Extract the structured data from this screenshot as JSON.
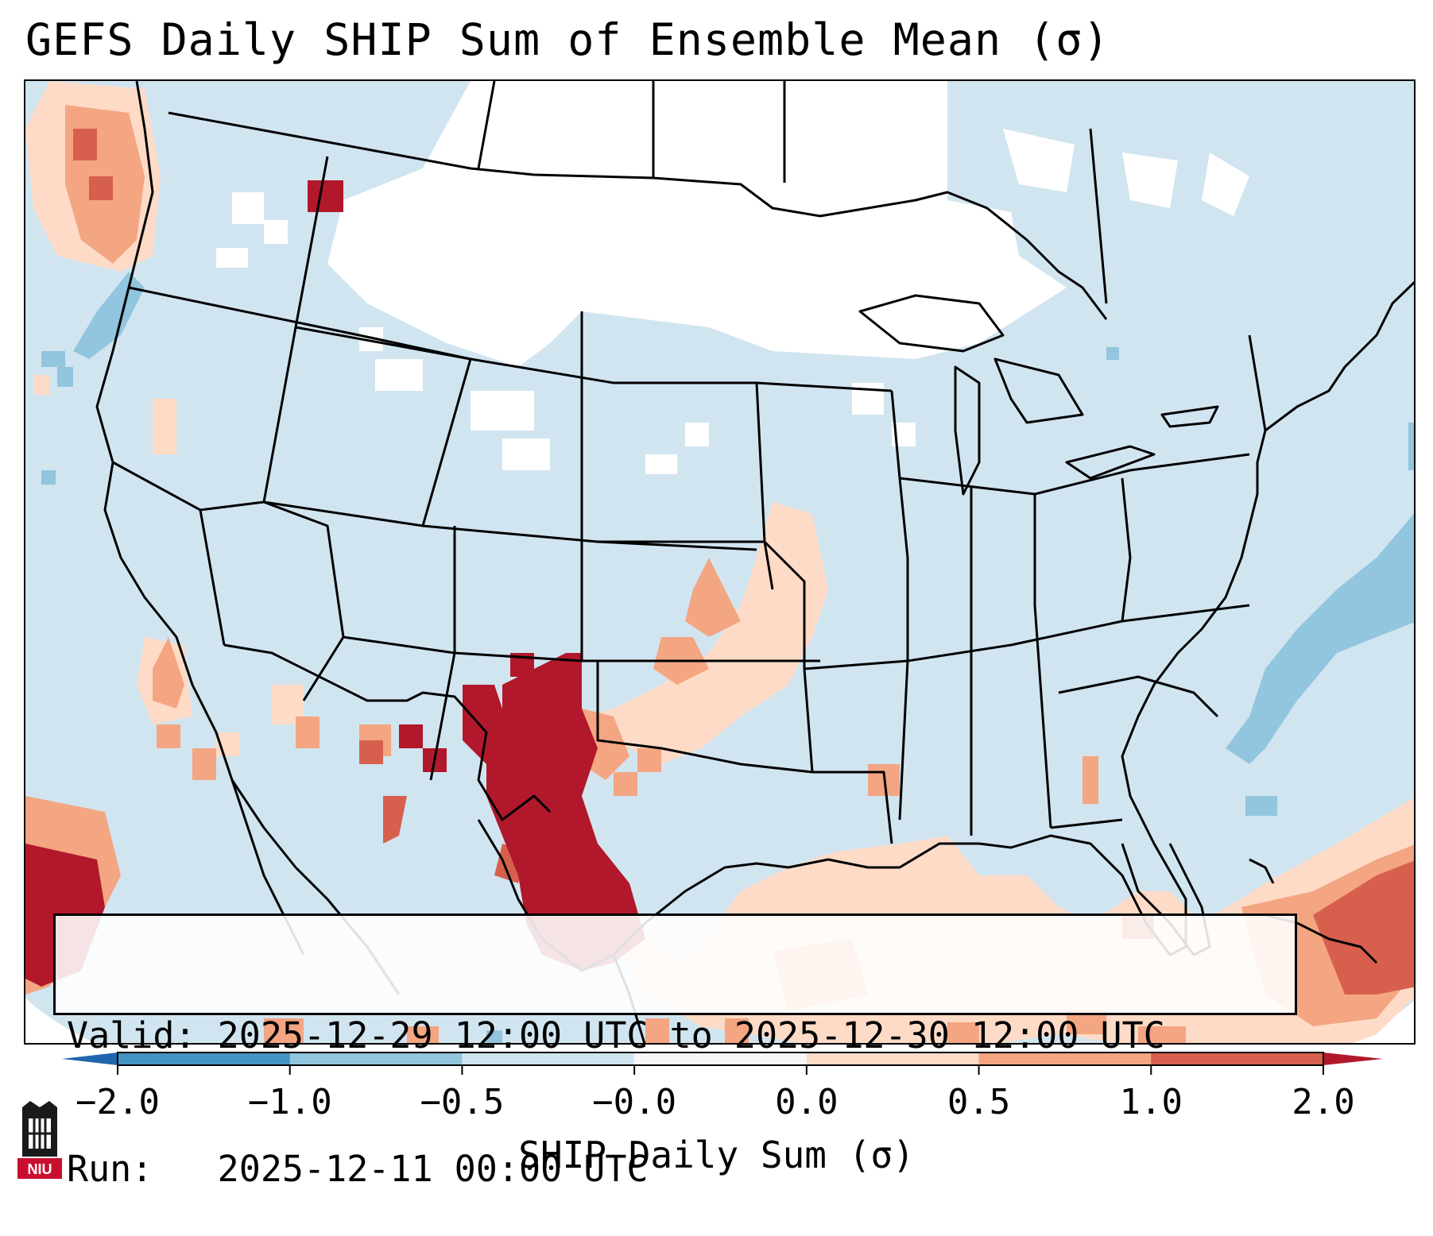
{
  "title": "GEFS Daily SHIP Sum of Ensemble Mean (σ)",
  "info": {
    "valid_label": "Valid:",
    "valid_value": "2025-12-29 12:00 UTC to 2025-12-30 12:00 UTC",
    "run_label": "Run:",
    "run_value": "2025-12-11 00:00 UTC"
  },
  "colorbar": {
    "label": "SHIP Daily Sum (σ)",
    "ticks": [
      "−2.0",
      "−1.0",
      "−0.5",
      "−0.0",
      "0.0",
      "0.5",
      "1.0",
      "2.0"
    ],
    "bins": [
      {
        "from": "-2.0",
        "to": "-1.0",
        "color": "#4393c3"
      },
      {
        "from": "-1.0",
        "to": "-0.5",
        "color": "#92c5de"
      },
      {
        "from": "-0.5",
        "to": "-0.0",
        "color": "#d1e5f0"
      },
      {
        "from": "-0.0",
        "to": "0.0",
        "color": "#f7f7f7"
      },
      {
        "from": "0.0",
        "to": "0.5",
        "color": "#fddbc7"
      },
      {
        "from": "0.5",
        "to": "1.0",
        "color": "#f4a582"
      },
      {
        "from": "1.0",
        "to": "2.0",
        "color": "#d6604d"
      }
    ],
    "extend_low_color": "#2166ac",
    "extend_high_color": "#b2182b"
  },
  "map_colors": {
    "background": "#d1e5f0",
    "neutral": "#ffffff",
    "light_red": "#fddbc7",
    "med_red": "#f4a582",
    "red": "#d6604d",
    "dark_red": "#b2182b",
    "med_blue": "#92c5de"
  },
  "logo": {
    "text": "NIU",
    "color": "#c8102e"
  }
}
